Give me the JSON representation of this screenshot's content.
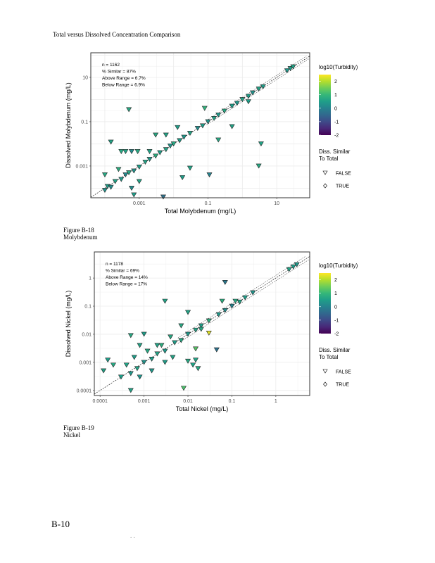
{
  "page_title": "Total versus Dissolved Concentration Comparison",
  "footer": {
    "page_number": "B-10",
    "dots": ". ."
  },
  "chart_data": [
    {
      "type": "scatter",
      "figure_label": "Figure B-18",
      "caption": "Molybdenum",
      "xlabel": "Total Molybdenum (mg/L)",
      "ylabel": "Dissolved Molybdenum (mg/L)",
      "x_scale": "log10",
      "y_scale": "log10",
      "xlim": [
        3.9e-05,
        91
      ],
      "ylim": [
        3.7e-05,
        129
      ],
      "x_ticks": [
        {
          "v": 0.001,
          "label": "0.001"
        },
        {
          "v": 0.1,
          "label": "0.1"
        },
        {
          "v": 10,
          "label": "10"
        }
      ],
      "y_ticks": [
        {
          "v": 0.001,
          "label": "0.001"
        },
        {
          "v": 0.1,
          "label": "0.1"
        },
        {
          "v": 10,
          "label": "10"
        }
      ],
      "grid": true,
      "annotations": [
        "n = 1162",
        "% Similar = 87%",
        "Above Range = 6.7%",
        "Below Range = 6.9%"
      ],
      "color_legend": {
        "title": "log10(Turbidity)",
        "range": [
          -2,
          2.5
        ],
        "ticks": [
          {
            "v": 2,
            "label": "2"
          },
          {
            "v": 1,
            "label": "1"
          },
          {
            "v": 0,
            "label": "0"
          },
          {
            "v": -1,
            "label": "-1"
          },
          {
            "v": -2,
            "label": "-2"
          }
        ]
      },
      "shape_legend": {
        "title_line1": "Diss. Similar",
        "title_line2": "To Total",
        "items": [
          {
            "label": "FALSE",
            "shape": "triangle-down"
          },
          {
            "label": "TRUE",
            "shape": "diamond"
          }
        ]
      },
      "legend_position": "right",
      "points": [
        [
          0.0001,
          8e-05,
          0.3
        ],
        [
          0.00012,
          0.00012,
          0.5
        ],
        [
          0.00015,
          0.00011,
          0.2
        ],
        [
          0.0002,
          0.0002,
          0.6
        ],
        [
          0.0003,
          0.00025,
          0.4
        ],
        [
          0.0004,
          0.0004,
          0.1
        ],
        [
          0.0005,
          0.0005,
          0.7
        ],
        [
          0.0007,
          0.0006,
          0.3
        ],
        [
          0.001,
          0.0009,
          0.5
        ],
        [
          0.0015,
          0.0015,
          0.6
        ],
        [
          0.002,
          0.002,
          0.4
        ],
        [
          0.003,
          0.0028,
          0.8
        ],
        [
          0.004,
          0.004,
          0.5
        ],
        [
          0.006,
          0.0055,
          0.6
        ],
        [
          0.008,
          0.008,
          0.3
        ],
        [
          0.01,
          0.01,
          0.7
        ],
        [
          0.015,
          0.014,
          0.5
        ],
        [
          0.02,
          0.02,
          0.4
        ],
        [
          0.03,
          0.03,
          0.6
        ],
        [
          0.05,
          0.05,
          0.2
        ],
        [
          0.07,
          0.065,
          0.5
        ],
        [
          0.1,
          0.1,
          0.3
        ],
        [
          0.15,
          0.14,
          0.6
        ],
        [
          0.2,
          0.2,
          0.4
        ],
        [
          0.3,
          0.3,
          0.7
        ],
        [
          0.5,
          0.5,
          0.5
        ],
        [
          0.7,
          0.68,
          0.4
        ],
        [
          1,
          1,
          0.6
        ],
        [
          1.5,
          1.4,
          0.5
        ],
        [
          2,
          2,
          0.3
        ],
        [
          3,
          3,
          0.6
        ],
        [
          4,
          3.8,
          0.5
        ],
        [
          20,
          20,
          0.4
        ],
        [
          25,
          25,
          0.5
        ],
        [
          30,
          30,
          0.6
        ],
        [
          0.0005,
          0.35,
          0.7
        ],
        [
          0.00015,
          0.012,
          0.6
        ],
        [
          0.0003,
          0.0045,
          0.7
        ],
        [
          0.0004,
          0.0045,
          0.6
        ],
        [
          0.0006,
          0.0045,
          0.2
        ],
        [
          0.0009,
          0.0045,
          0.7
        ],
        [
          0.002,
          0.0045,
          0.6
        ],
        [
          0.003,
          0.025,
          0.7
        ],
        [
          0.006,
          0.025,
          0.6
        ],
        [
          0.013,
          0.055,
          0.5
        ],
        [
          0.08,
          0.4,
          0.9
        ],
        [
          0.03,
          0.0008,
          0.6
        ],
        [
          0.018,
          0.0003,
          0.5
        ],
        [
          0.11,
          0.0004,
          0.0
        ],
        [
          0.005,
          4e-05,
          -0.3
        ],
        [
          0.2,
          0.015,
          0.7
        ],
        [
          0.5,
          0.06,
          0.6
        ],
        [
          1.5,
          0.8,
          0.5
        ],
        [
          3,
          0.001,
          0.7
        ],
        [
          3.5,
          0.01,
          0.6
        ],
        [
          0.0001,
          0.0004,
          0.7
        ],
        [
          0.00025,
          0.0007,
          0.8
        ],
        [
          0.001,
          0.0002,
          0.6
        ],
        [
          0.0006,
          0.0001,
          0.2
        ],
        [
          0.0007,
          5e-05,
          0.5
        ]
      ]
    },
    {
      "type": "scatter",
      "figure_label": "Figure B-19",
      "caption": "Nickel",
      "xlabel": "Total Nickel (mg/L)",
      "ylabel": "Dissolved Nickel (mg/L)",
      "x_scale": "log10",
      "y_scale": "log10",
      "xlim": [
        7.4e-05,
        5.9
      ],
      "ylim": [
        6.6e-05,
        8.5
      ],
      "x_ticks": [
        {
          "v": 0.0001,
          "label": "0.0001"
        },
        {
          "v": 0.001,
          "label": "0.001"
        },
        {
          "v": 0.01,
          "label": "0.01"
        },
        {
          "v": 0.1,
          "label": "0.1"
        },
        {
          "v": 1,
          "label": "1"
        }
      ],
      "y_ticks": [
        {
          "v": 0.0001,
          "label": "0.0001"
        },
        {
          "v": 0.001,
          "label": "0.001"
        },
        {
          "v": 0.01,
          "label": "0.01"
        },
        {
          "v": 0.1,
          "label": "0.1"
        },
        {
          "v": 1,
          "label": "1"
        }
      ],
      "grid": true,
      "annotations": [
        "n = 1178",
        "% Similar = 69%",
        "Above Range = 14%",
        "Below Range = 17%"
      ],
      "color_legend": {
        "title": "log10(Turbidity)",
        "range": [
          -2,
          2.5
        ],
        "ticks": [
          {
            "v": 2,
            "label": "2"
          },
          {
            "v": 1,
            "label": "1"
          },
          {
            "v": 0,
            "label": "0"
          },
          {
            "v": -1,
            "label": "-1"
          },
          {
            "v": -2,
            "label": "-2"
          }
        ]
      },
      "shape_legend": {
        "title_line1": "Diss. Similar",
        "title_line2": "To Total",
        "items": [
          {
            "label": "FALSE",
            "shape": "triangle-down"
          },
          {
            "label": "TRUE",
            "shape": "diamond"
          }
        ]
      },
      "legend_position": "right",
      "points": [
        [
          0.0003,
          0.0003,
          0.5
        ],
        [
          0.0005,
          0.0004,
          0.4
        ],
        [
          0.0007,
          0.0006,
          0.6
        ],
        [
          0.001,
          0.001,
          0.3
        ],
        [
          0.0015,
          0.0013,
          0.5
        ],
        [
          0.002,
          0.002,
          0.6
        ],
        [
          0.003,
          0.0025,
          0.4
        ],
        [
          0.005,
          0.005,
          0.5
        ],
        [
          0.007,
          0.006,
          0.7
        ],
        [
          0.01,
          0.01,
          0.4
        ],
        [
          0.015,
          0.014,
          0.6
        ],
        [
          0.02,
          0.02,
          0.5
        ],
        [
          0.03,
          0.03,
          0.8
        ],
        [
          0.05,
          0.05,
          0.4
        ],
        [
          0.07,
          0.07,
          0.2
        ],
        [
          0.1,
          0.1,
          0.0
        ],
        [
          0.15,
          0.14,
          0.6
        ],
        [
          0.2,
          0.2,
          0.5
        ],
        [
          0.3,
          0.3,
          0.3
        ],
        [
          2,
          2,
          0.6
        ],
        [
          2.5,
          2.5,
          0.5
        ],
        [
          3,
          3,
          0.4
        ],
        [
          0.0004,
          0.0008,
          0.6
        ],
        [
          0.0006,
          0.0015,
          0.5
        ],
        [
          0.0008,
          0.0003,
          0.3
        ],
        [
          0.0012,
          0.0025,
          0.7
        ],
        [
          0.0015,
          0.0005,
          0.4
        ],
        [
          0.002,
          0.004,
          0.6
        ],
        [
          0.003,
          0.001,
          0.5
        ],
        [
          0.004,
          0.008,
          0.7
        ],
        [
          0.0045,
          0.0015,
          0.6
        ],
        [
          0.00012,
          0.0005,
          0.6
        ],
        [
          0.00015,
          0.0012,
          0.5
        ],
        [
          0.0002,
          0.0008,
          0.7
        ],
        [
          0.0005,
          0.0001,
          0.6
        ],
        [
          0.0005,
          0.009,
          0.7
        ],
        [
          0.0008,
          0.004,
          0.6
        ],
        [
          0.001,
          0.01,
          0.5
        ],
        [
          0.0025,
          0.004,
          0.8
        ],
        [
          0.003,
          0.15,
          0.6
        ],
        [
          0.007,
          0.02,
          0.7
        ],
        [
          0.01,
          0.06,
          0.6
        ],
        [
          0.01,
          0.0011,
          0.7
        ],
        [
          0.013,
          0.0008,
          0.6
        ],
        [
          0.015,
          0.003,
          1.3
        ],
        [
          0.02,
          0.015,
          0.7
        ],
        [
          0.03,
          0.011,
          2.3
        ],
        [
          0.045,
          0.0028,
          -0.3
        ],
        [
          0.07,
          0.7,
          -0.2
        ],
        [
          0.06,
          0.15,
          0.8
        ],
        [
          0.12,
          0.15,
          0.7
        ],
        [
          0.008,
          0.00012,
          1.2
        ],
        [
          0.017,
          0.0006,
          0.7
        ],
        [
          0.015,
          0.0012,
          0.6
        ]
      ]
    }
  ]
}
